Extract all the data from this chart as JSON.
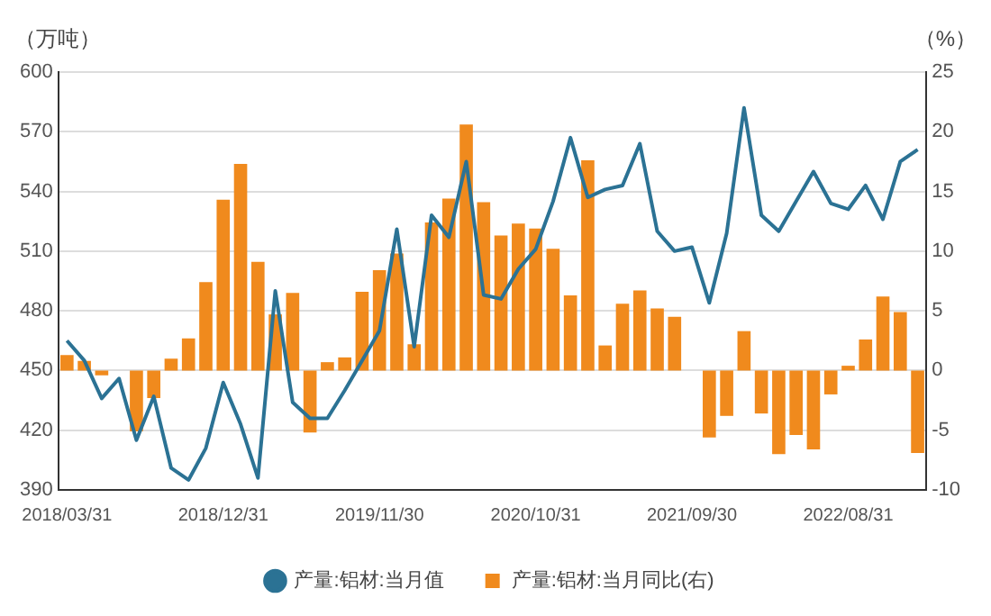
{
  "chart_data": {
    "type": "bar",
    "categories": [
      "2018/03/31",
      null,
      null,
      null,
      null,
      null,
      null,
      null,
      null,
      "2018/12/31",
      null,
      null,
      null,
      null,
      null,
      null,
      null,
      null,
      "2019/11/30",
      null,
      null,
      null,
      null,
      null,
      null,
      null,
      null,
      "2020/10/31",
      null,
      null,
      null,
      null,
      null,
      null,
      null,
      null,
      "2021/09/30",
      null,
      null,
      null,
      null,
      null,
      null,
      null,
      null,
      "2022/08/31",
      null,
      null,
      null,
      null
    ],
    "series": [
      {
        "name": "产量:铝材:当月值",
        "type": "line",
        "color": "#2b7294",
        "values": [
          465,
          455,
          436,
          446,
          415,
          437,
          401,
          395,
          411,
          444,
          423,
          396,
          490,
          434,
          426,
          426,
          440,
          455,
          470,
          521,
          462,
          528,
          517,
          555,
          488,
          486,
          501,
          511,
          535,
          567,
          537,
          541,
          543,
          564,
          520,
          510,
          512,
          484,
          519,
          582,
          528,
          520,
          535,
          550,
          534,
          531,
          543,
          526,
          555,
          561
        ]
      },
      {
        "name": "产量:铝材:当月同比(右)",
        "axis": "y2",
        "color": "#f08a1d",
        "values": [
          1.3,
          0.8,
          -0.4,
          0,
          -5.1,
          -2.3,
          1,
          2.7,
          7.4,
          14.3,
          17.3,
          9.1,
          4.7,
          6.5,
          -5.2,
          0.7,
          1.1,
          6.6,
          8.4,
          9.8,
          2.2,
          12.4,
          14.4,
          20.6,
          14.1,
          11.3,
          12.3,
          11.9,
          10.2,
          6.3,
          17.6,
          2.1,
          5.6,
          6.7,
          5.2,
          4.5,
          0,
          -5.6,
          -3.8,
          3.3,
          -3.6,
          -7,
          -5.4,
          -6.6,
          -2,
          0.4,
          2.6,
          6.2,
          4.9,
          -6.9
        ]
      }
    ],
    "ylabel": "（万吨）",
    "y2label": "（%）",
    "ylim": [
      390,
      600
    ],
    "yticks": [
      390,
      420,
      450,
      480,
      510,
      540,
      570,
      600
    ],
    "y2lim": [
      -10,
      25
    ],
    "y2ticks": [
      -10,
      -5,
      0,
      5,
      10,
      15,
      20,
      25
    ],
    "grid": "y",
    "legend": "bottom",
    "marker": "none",
    "line_style": "solid"
  }
}
